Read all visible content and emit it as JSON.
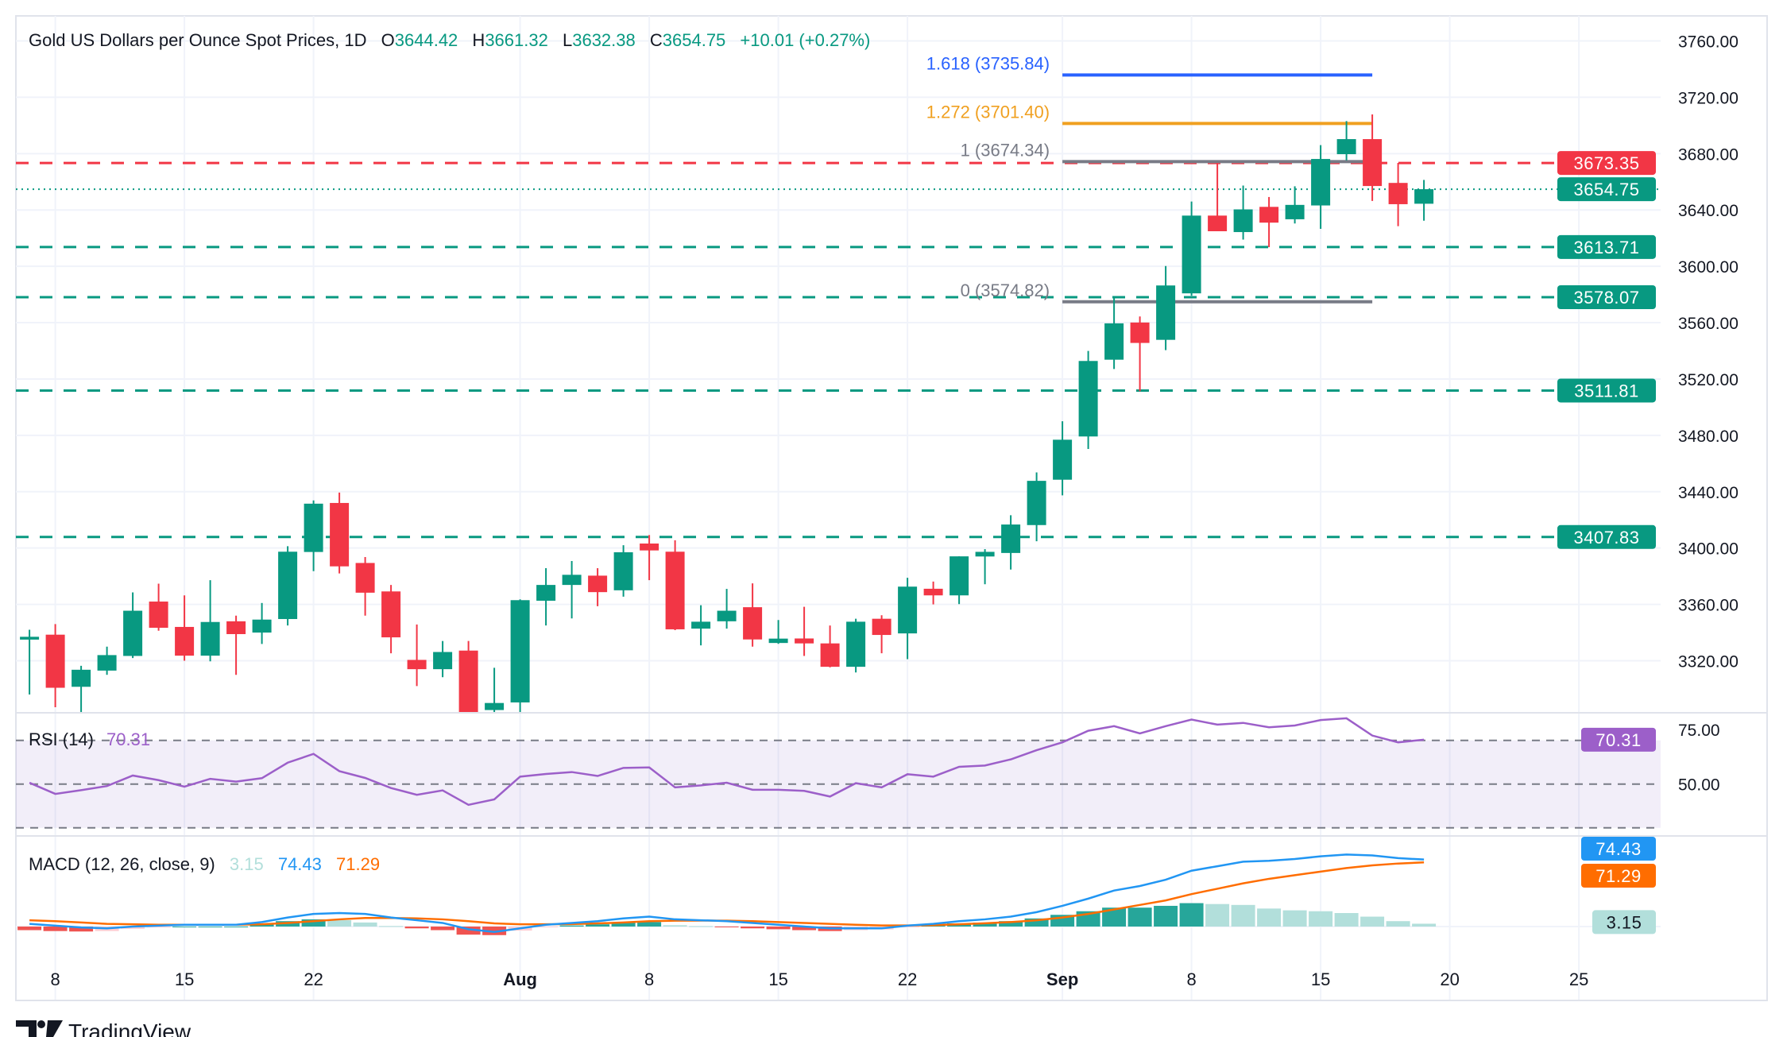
{
  "header": {
    "title": "Gold US Dollars per Ounce Spot Prices, 1D",
    "open_label": "O",
    "open": "3644.42",
    "high_label": "H",
    "high": "3661.32",
    "low_label": "L",
    "low": "3632.38",
    "close_label": "C",
    "close": "3654.75",
    "change": "+10.01 (+0.27%)"
  },
  "colors": {
    "up": "#089981",
    "down": "#f23645",
    "rsi": "#9c5fc9",
    "macd": "#2196f3",
    "signal": "#ff6d00",
    "hist_up_strong": "#26a69a",
    "hist_up_weak": "#b2dfdb",
    "hist_down_strong": "#ef5350",
    "hist_down_weak": "#ffcdd2",
    "fib_1618": "#2962ff",
    "fib_1272": "#f0a020",
    "fib_gray": "#787b86"
  },
  "price_axis": {
    "ticks": [
      "3760.00",
      "3720.00",
      "3680.00",
      "3640.00",
      "3600.00",
      "3560.00",
      "3520.00",
      "3480.00",
      "3440.00",
      "3400.00",
      "3360.00",
      "3320.00"
    ]
  },
  "levels": [
    {
      "value": "3673.35",
      "style": "dashed",
      "color": "#f23645"
    },
    {
      "value": "3654.75",
      "style": "dotted",
      "color": "#089981"
    },
    {
      "value": "3613.71",
      "style": "dashed",
      "color": "#089981"
    },
    {
      "value": "3578.07",
      "style": "dashed",
      "color": "#089981"
    },
    {
      "value": "3511.81",
      "style": "dashed",
      "color": "#089981"
    },
    {
      "value": "3407.83",
      "style": "dashed",
      "color": "#089981"
    }
  ],
  "fibonacci": {
    "start_date": "2025-09-01",
    "end_date": "2025-09-17",
    "levels": [
      {
        "label": "1.618 (3735.84)",
        "value": 3735.84,
        "color": "#2962ff"
      },
      {
        "label": "1.272 (3701.40)",
        "value": 3701.4,
        "color": "#f0a020"
      },
      {
        "label": "1 (3674.34)",
        "value": 3674.34,
        "color": "#787b86"
      },
      {
        "label": "0 (3574.82)",
        "value": 3574.82,
        "color": "#787b86"
      }
    ]
  },
  "rsi": {
    "title": "RSI (14)",
    "value": "70.31",
    "axis_ticks": [
      "75.00",
      "50.00"
    ],
    "bands": [
      70,
      50,
      30
    ]
  },
  "macd": {
    "title": "MACD (12, 26, close, 9)",
    "hist_value": "3.15",
    "macd_value": "74.43",
    "signal_value": "71.29"
  },
  "x_axis": {
    "ticks": [
      {
        "label": "8",
        "date": "2025-07-08"
      },
      {
        "label": "15",
        "date": "2025-07-15"
      },
      {
        "label": "22",
        "date": "2025-07-22"
      },
      {
        "label": "Aug",
        "date": "2025-08-01",
        "bold": true
      },
      {
        "label": "8",
        "date": "2025-08-08"
      },
      {
        "label": "15",
        "date": "2025-08-15"
      },
      {
        "label": "22",
        "date": "2025-08-22"
      },
      {
        "label": "Sep",
        "date": "2025-09-01",
        "bold": true
      },
      {
        "label": "8",
        "date": "2025-09-08"
      },
      {
        "label": "15",
        "date": "2025-09-15"
      },
      {
        "label": "20",
        "date": "2025-09-20"
      },
      {
        "label": "25",
        "date": "2025-09-25"
      }
    ]
  },
  "branding": {
    "logo_text": "TradingView"
  },
  "chart_data": [
    {
      "type": "candlestick",
      "title": "Gold US Dollars per Ounce Spot Prices, 1D",
      "ylim": [
        3284,
        3780
      ],
      "grid": true,
      "dates": [
        "2025-07-07",
        "2025-07-08",
        "2025-07-09",
        "2025-07-10",
        "2025-07-11",
        "2025-07-14",
        "2025-07-15",
        "2025-07-16",
        "2025-07-17",
        "2025-07-18",
        "2025-07-21",
        "2025-07-22",
        "2025-07-23",
        "2025-07-24",
        "2025-07-25",
        "2025-07-28",
        "2025-07-29",
        "2025-07-30",
        "2025-07-31",
        "2025-08-01",
        "2025-08-04",
        "2025-08-05",
        "2025-08-06",
        "2025-08-07",
        "2025-08-08",
        "2025-08-11",
        "2025-08-12",
        "2025-08-13",
        "2025-08-14",
        "2025-08-15",
        "2025-08-18",
        "2025-08-19",
        "2025-08-20",
        "2025-08-21",
        "2025-08-22",
        "2025-08-25",
        "2025-08-26",
        "2025-08-27",
        "2025-08-28",
        "2025-08-29",
        "2025-09-01",
        "2025-09-02",
        "2025-09-03",
        "2025-09-04",
        "2025-09-05",
        "2025-09-08",
        "2025-09-09",
        "2025-09-10",
        "2025-09-11",
        "2025-09-12",
        "2025-09-15",
        "2025-09-16",
        "2025-09-17",
        "2025-09-18",
        "2025-09-19"
      ],
      "ohlc": [
        [
          3335,
          3342,
          3296,
          3337
        ],
        [
          3338.5,
          3346,
          3287,
          3300.8
        ],
        [
          3301.5,
          3316.4,
          3283.6,
          3313.6
        ],
        [
          3313,
          3330,
          3310,
          3324
        ],
        [
          3323.4,
          3368.5,
          3321.9,
          3355.5
        ],
        [
          3362,
          3374.7,
          3341.3,
          3343.4
        ],
        [
          3344,
          3366.4,
          3320,
          3323.6
        ],
        [
          3323.6,
          3377.2,
          3319.6,
          3347.5
        ],
        [
          3348,
          3352,
          3310,
          3338.9
        ],
        [
          3340,
          3361,
          3331.9,
          3349.2
        ],
        [
          3349.6,
          3401.3,
          3345,
          3397.4
        ],
        [
          3397.2,
          3433.8,
          3383.6,
          3431.5
        ],
        [
          3432,
          3439.4,
          3382,
          3387
        ],
        [
          3389.4,
          3393.6,
          3352,
          3368.3
        ],
        [
          3369.2,
          3373.8,
          3325.3,
          3336.6
        ],
        [
          3320.6,
          3345.7,
          3302,
          3314
        ],
        [
          3314,
          3334,
          3308.3,
          3326.2
        ],
        [
          3327.2,
          3334,
          3268,
          3275
        ],
        [
          3285,
          3315,
          3268,
          3290
        ],
        [
          3290.4,
          3363.6,
          3283,
          3363
        ],
        [
          3362.6,
          3385.7,
          3345,
          3373.8
        ],
        [
          3373.8,
          3390.8,
          3350,
          3381
        ],
        [
          3380.4,
          3385.7,
          3358.7,
          3368.7
        ],
        [
          3370,
          3402,
          3365.5,
          3397
        ],
        [
          3403.2,
          3409.2,
          3377.2,
          3398.3
        ],
        [
          3397.4,
          3405.5,
          3341.7,
          3342.3
        ],
        [
          3342.8,
          3359.4,
          3330.9,
          3347.7
        ],
        [
          3348,
          3371,
          3342.8,
          3355.5
        ],
        [
          3358,
          3374.9,
          3330,
          3335.1
        ],
        [
          3332.6,
          3348.9,
          3332,
          3335.7
        ],
        [
          3335.8,
          3358.3,
          3323.4,
          3332.3
        ],
        [
          3332.3,
          3345,
          3315.3,
          3315.7
        ],
        [
          3315.7,
          3349.8,
          3311.7,
          3347.7
        ],
        [
          3349.8,
          3352.3,
          3325.3,
          3338.3
        ],
        [
          3339.4,
          3378.9,
          3321.1,
          3372.6
        ],
        [
          3371.1,
          3376.2,
          3360,
          3366.4
        ],
        [
          3366.4,
          3394.1,
          3360.2,
          3394.1
        ],
        [
          3394,
          3399.2,
          3374.3,
          3397.3
        ],
        [
          3396.5,
          3423.3,
          3384.7,
          3416.7
        ],
        [
          3416.3,
          3453.7,
          3404.8,
          3447.7
        ],
        [
          3448.5,
          3490,
          3437.4,
          3476.9
        ],
        [
          3479.2,
          3539.9,
          3470.3,
          3532.8
        ],
        [
          3533.7,
          3578.9,
          3527.1,
          3559.5
        ],
        [
          3560.1,
          3564.4,
          3511.3,
          3545.6
        ],
        [
          3547.8,
          3600.2,
          3540.5,
          3586.4
        ],
        [
          3580.8,
          3646,
          3579.1,
          3636
        ],
        [
          3636,
          3673.4,
          3624.9,
          3624.9
        ],
        [
          3624.3,
          3657.3,
          3619,
          3640.4
        ],
        [
          3642.2,
          3649.2,
          3613.6,
          3631
        ],
        [
          3633.4,
          3656.8,
          3630.4,
          3643.6
        ],
        [
          3643.2,
          3686,
          3626.6,
          3676.2
        ],
        [
          3679.6,
          3703.1,
          3675.2,
          3690.3
        ],
        [
          3690.3,
          3707.8,
          3646.4,
          3657
        ],
        [
          3659.2,
          3673.4,
          3628.5,
          3644.1
        ],
        [
          3644.42,
          3661.32,
          3632.38,
          3654.75
        ]
      ]
    },
    {
      "type": "line",
      "title": "RSI (14)",
      "ylim": [
        22,
        84
      ],
      "series": [
        {
          "name": "RSI (14)",
          "values": [
            50.6,
            45.5,
            47.2,
            49.1,
            53.9,
            51.8,
            48.8,
            52.4,
            51.1,
            52.7,
            59.8,
            63.8,
            55.9,
            52.8,
            48.2,
            45.1,
            47.1,
            40.5,
            43.0,
            53.4,
            54.6,
            55.5,
            53.7,
            57.4,
            57.6,
            48.5,
            49.4,
            50.6,
            47.4,
            47.4,
            46.9,
            44.3,
            50.4,
            48.5,
            54.5,
            53.4,
            57.9,
            58.5,
            61.3,
            65.5,
            69.1,
            74.4,
            76.5,
            73.2,
            76.5,
            79.5,
            77.2,
            78.0,
            76.0,
            76.8,
            79.3,
            80.1,
            72.2,
            69.1,
            70.31
          ]
        }
      ]
    },
    {
      "type": "line",
      "title": "MACD (12, 26, close, 9)",
      "series": [
        {
          "name": "MACD",
          "values": [
            3,
            1,
            -1,
            -2,
            0,
            1,
            2,
            2,
            2,
            5,
            10,
            14,
            15,
            14,
            10,
            7,
            4,
            -3,
            -6,
            -2,
            2,
            4,
            6,
            9,
            11,
            8,
            7,
            6,
            4,
            2,
            0,
            -2,
            -2,
            -2,
            1,
            3,
            6,
            8,
            11,
            16,
            23,
            31,
            40,
            45,
            52,
            62,
            67,
            72,
            73,
            75,
            78,
            80,
            79,
            76,
            74.43
          ]
        },
        {
          "name": "Signal",
          "values": [
            7,
            6,
            4.5,
            3,
            2.5,
            2,
            2,
            2,
            2,
            2.5,
            4,
            6,
            8,
            9.5,
            9.5,
            9,
            8,
            6,
            3.5,
            2.5,
            2.5,
            2.8,
            3.5,
            4.5,
            6,
            6.5,
            6.6,
            6.5,
            6,
            5,
            4,
            3,
            2,
            1.2,
            1.2,
            1.5,
            2.5,
            3.6,
            5,
            7,
            10,
            14,
            19,
            24,
            29,
            36,
            42,
            48,
            53,
            57,
            61,
            65,
            68,
            70,
            71.29
          ]
        },
        {
          "name": "Histogram",
          "values": [
            -4,
            -5,
            -5.5,
            -5,
            -2.5,
            -1,
            0,
            0,
            0,
            2.5,
            6,
            8,
            7,
            4.5,
            0.5,
            -2,
            -4,
            -9,
            -9.5,
            -4.5,
            -0.5,
            1.2,
            2.5,
            4.5,
            5,
            1.5,
            0.4,
            -0.5,
            -2,
            -3,
            -4,
            -5,
            -4,
            -3.2,
            -0.2,
            1.5,
            3.5,
            4.4,
            6,
            9,
            13,
            17,
            21,
            21,
            23,
            26,
            25,
            24,
            20,
            18,
            17,
            15,
            11,
            6,
            3.15
          ]
        }
      ]
    }
  ]
}
